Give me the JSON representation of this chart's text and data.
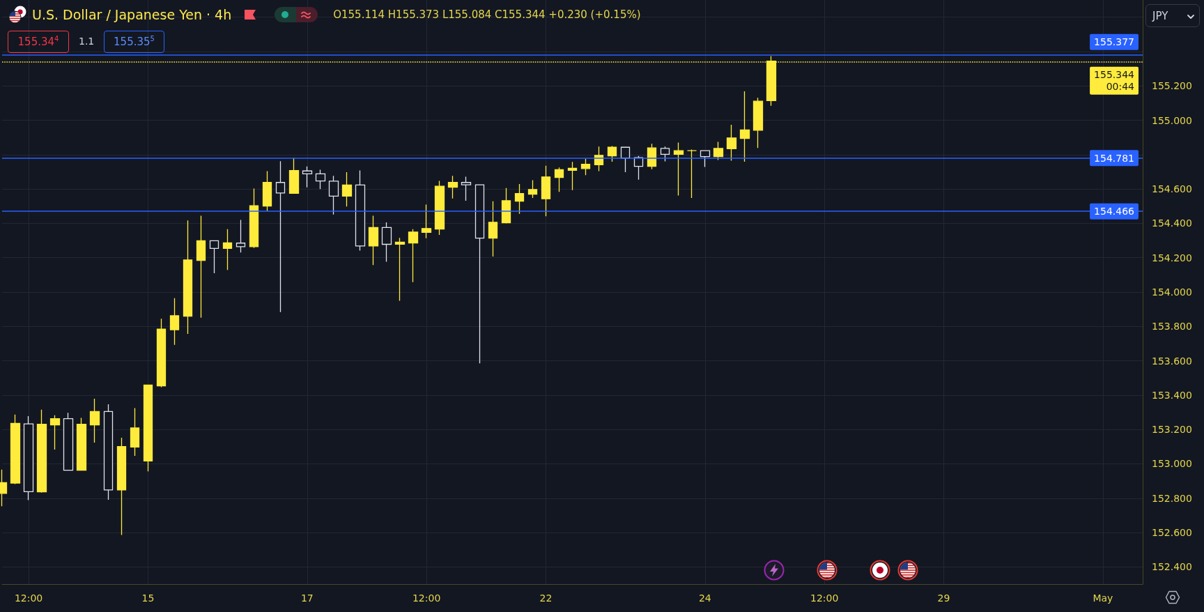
{
  "chart_data": {
    "type": "candlestick",
    "title": "U.S. Dollar / Japanese Yen · 4h",
    "categories": [
      null,
      null,
      "12:00",
      null,
      null,
      null,
      null,
      null,
      null,
      null,
      null,
      "15",
      null,
      null,
      null,
      null,
      null,
      null,
      null,
      null,
      null,
      null,
      null,
      "17",
      null,
      null,
      null,
      null,
      null,
      null,
      null,
      null,
      "12:00",
      null,
      null,
      null,
      null,
      null,
      null,
      null,
      null,
      "22",
      null,
      null,
      null,
      null,
      null,
      null,
      null,
      null,
      null,
      null,
      null,
      "24",
      null,
      null,
      null,
      null,
      null,
      null,
      null,
      null,
      "12:00",
      null,
      null,
      null,
      null,
      null,
      null,
      null,
      null,
      "29",
      null,
      null,
      null,
      null,
      null,
      null,
      null,
      null,
      null,
      null,
      null,
      "May",
      null,
      null,
      null
    ],
    "ohlc": [
      [
        152.828,
        152.966,
        152.753,
        152.891
      ],
      [
        152.888,
        153.287,
        152.882,
        153.236
      ],
      [
        153.233,
        153.278,
        152.789,
        152.838
      ],
      [
        152.837,
        153.315,
        152.833,
        153.231
      ],
      [
        153.227,
        153.283,
        153.083,
        153.263
      ],
      [
        153.263,
        153.297,
        152.96,
        152.963
      ],
      [
        152.963,
        153.268,
        152.96,
        153.231
      ],
      [
        153.227,
        153.379,
        153.124,
        153.305
      ],
      [
        153.305,
        153.347,
        152.791,
        152.848
      ],
      [
        152.848,
        153.152,
        152.586,
        153.101
      ],
      [
        153.098,
        153.324,
        153.047,
        153.209
      ],
      [
        153.017,
        153.46,
        152.956,
        153.459
      ],
      [
        153.454,
        153.845,
        153.446,
        153.784
      ],
      [
        153.781,
        153.964,
        153.693,
        153.862
      ],
      [
        153.86,
        154.417,
        153.757,
        154.187
      ],
      [
        154.184,
        154.444,
        153.851,
        154.299
      ],
      [
        154.299,
        154.3,
        154.11,
        154.254
      ],
      [
        154.254,
        154.366,
        154.129,
        154.286
      ],
      [
        154.285,
        154.42,
        154.23,
        154.264
      ],
      [
        154.264,
        154.602,
        154.257,
        154.502
      ],
      [
        154.501,
        154.704,
        154.471,
        154.638
      ],
      [
        154.638,
        154.762,
        153.883,
        154.577
      ],
      [
        154.575,
        154.782,
        154.575,
        154.707
      ],
      [
        154.705,
        154.731,
        154.61,
        154.688
      ],
      [
        154.688,
        154.712,
        154.599,
        154.647
      ],
      [
        154.646,
        154.677,
        154.451,
        154.558
      ],
      [
        154.558,
        154.698,
        154.498,
        154.623
      ],
      [
        154.623,
        154.708,
        154.241,
        154.268
      ],
      [
        154.268,
        154.444,
        154.157,
        154.376
      ],
      [
        154.376,
        154.406,
        154.176,
        154.278
      ],
      [
        154.279,
        154.315,
        153.949,
        154.291
      ],
      [
        154.286,
        154.366,
        154.058,
        154.349
      ],
      [
        154.347,
        154.509,
        154.313,
        154.37
      ],
      [
        154.367,
        154.647,
        154.333,
        154.616
      ],
      [
        154.61,
        154.677,
        154.545,
        154.638
      ],
      [
        154.638,
        154.671,
        154.532,
        154.624
      ],
      [
        154.624,
        154.625,
        153.585,
        154.314
      ],
      [
        154.314,
        154.528,
        154.207,
        154.406
      ],
      [
        154.403,
        154.606,
        154.4,
        154.532
      ],
      [
        154.529,
        154.629,
        154.455,
        154.573
      ],
      [
        154.57,
        154.651,
        154.548,
        154.597
      ],
      [
        154.543,
        154.735,
        154.441,
        154.67
      ],
      [
        154.667,
        154.725,
        154.583,
        154.712
      ],
      [
        154.709,
        154.758,
        154.593,
        154.721
      ],
      [
        154.719,
        154.776,
        154.681,
        154.744
      ],
      [
        154.741,
        154.847,
        154.704,
        154.796
      ],
      [
        154.793,
        154.85,
        154.759,
        154.843
      ],
      [
        154.843,
        154.845,
        154.698,
        154.78
      ],
      [
        154.782,
        154.792,
        154.654,
        154.732
      ],
      [
        154.732,
        154.863,
        154.715,
        154.839
      ],
      [
        154.836,
        154.847,
        154.761,
        154.802
      ],
      [
        154.802,
        154.87,
        154.562,
        154.823
      ],
      [
        154.823,
        154.83,
        154.548,
        154.823
      ],
      [
        154.823,
        154.825,
        154.728,
        154.789
      ],
      [
        154.789,
        154.874,
        154.769,
        154.836
      ],
      [
        154.834,
        154.974,
        154.765,
        154.897
      ],
      [
        154.894,
        155.168,
        154.759,
        154.944
      ],
      [
        154.942,
        155.131,
        154.839,
        155.111
      ],
      [
        155.114,
        155.373,
        155.084,
        155.344
      ],
      null,
      null,
      null,
      null,
      null,
      null,
      null,
      null,
      null,
      null,
      null,
      null,
      null,
      null,
      null,
      null,
      null,
      null,
      null,
      null,
      null,
      null,
      null,
      null,
      null,
      null,
      null,
      null
    ],
    "colors": [
      "#ffeb3b",
      "#ffeb3b",
      "#e0e3eb",
      "#ffeb3b",
      "#ffeb3b",
      "#e0e3eb",
      "#ffeb3b",
      "#ffeb3b",
      "#e0e3eb",
      "#ffeb3b",
      "#ffeb3b",
      "#ffeb3b",
      "#ffeb3b",
      "#ffeb3b",
      "#ffeb3b",
      "#ffeb3b",
      "#e0e3eb",
      "#ffeb3b",
      "#e0e3eb",
      "#ffeb3b",
      "#ffeb3b",
      "#e0e3eb",
      "#ffeb3b",
      "#e0e3eb",
      "#e0e3eb",
      "#e0e3eb",
      "#ffeb3b",
      "#e0e3eb",
      "#ffeb3b",
      "#e0e3eb",
      "#ffeb3b",
      "#ffeb3b",
      "#ffeb3b",
      "#ffeb3b",
      "#ffeb3b",
      "#e0e3eb",
      "#e0e3eb",
      "#ffeb3b",
      "#ffeb3b",
      "#ffeb3b",
      "#ffeb3b",
      "#ffeb3b",
      "#ffeb3b",
      "#ffeb3b",
      "#ffeb3b",
      "#ffeb3b",
      "#ffeb3b",
      "#e0e3eb",
      "#e0e3eb",
      "#ffeb3b",
      "#e0e3eb",
      "#ffeb3b",
      "#ffeb3b",
      "#e0e3eb",
      "#ffeb3b",
      "#ffeb3b",
      "#ffeb3b",
      "#ffeb3b",
      "#ffeb3b",
      null,
      null,
      null,
      null,
      null,
      null,
      null,
      null,
      null,
      null,
      null,
      null,
      null,
      null,
      null,
      null,
      null,
      null,
      null,
      null,
      null,
      null,
      null,
      null,
      null,
      null,
      null,
      null
    ],
    "ylim": [
      152.3,
      155.7
    ],
    "yticks": [
      {
        "value": 152.4,
        "label": "152.400"
      },
      {
        "value": 152.6,
        "label": "152.600"
      },
      {
        "value": 152.8,
        "label": "152.800"
      },
      {
        "value": 153,
        "label": "153.000"
      },
      {
        "value": 153.2,
        "label": "153.200"
      },
      {
        "value": 153.4,
        "label": "153.400"
      },
      {
        "value": 153.6,
        "label": "153.600"
      },
      {
        "value": 153.8,
        "label": "153.800"
      },
      {
        "value": 154,
        "label": "154.000"
      },
      {
        "value": 154.2,
        "label": "154.200"
      },
      {
        "value": 154.4,
        "label": "154.400"
      },
      {
        "value": 154.6,
        "label": "154.600"
      },
      {
        "value": 154.8,
        "label": null
      },
      {
        "value": 155,
        "label": "155.000"
      },
      {
        "value": 155.2,
        "label": "155.200"
      },
      {
        "value": 155.4,
        "label": null
      },
      {
        "value": 155.6,
        "label": null
      }
    ],
    "grid": true,
    "ref_lines": [
      {
        "axis": "y",
        "value": 155.377,
        "label": "155.377",
        "color": "#2962ff",
        "line_style": "solid"
      },
      {
        "axis": "y",
        "value": 155.344,
        "label": "155.344\n00:44",
        "color": "#ffeb3b",
        "line_style": "dotted"
      },
      {
        "axis": "y",
        "value": 154.781,
        "label": "154.781",
        "color": "#2962ff",
        "line_style": "solid"
      },
      {
        "axis": "y",
        "value": 154.466,
        "label": "154.466",
        "color": "#2962ff",
        "line_style": "solid"
      }
    ],
    "annotations": [
      "O155.114 H155.373 L155.084 C155.344 +0.230 (+0.15%)",
      "155.34$^{4}$",
      "1.1",
      "155.35$^{5}$",
      "JPY"
    ]
  }
}
